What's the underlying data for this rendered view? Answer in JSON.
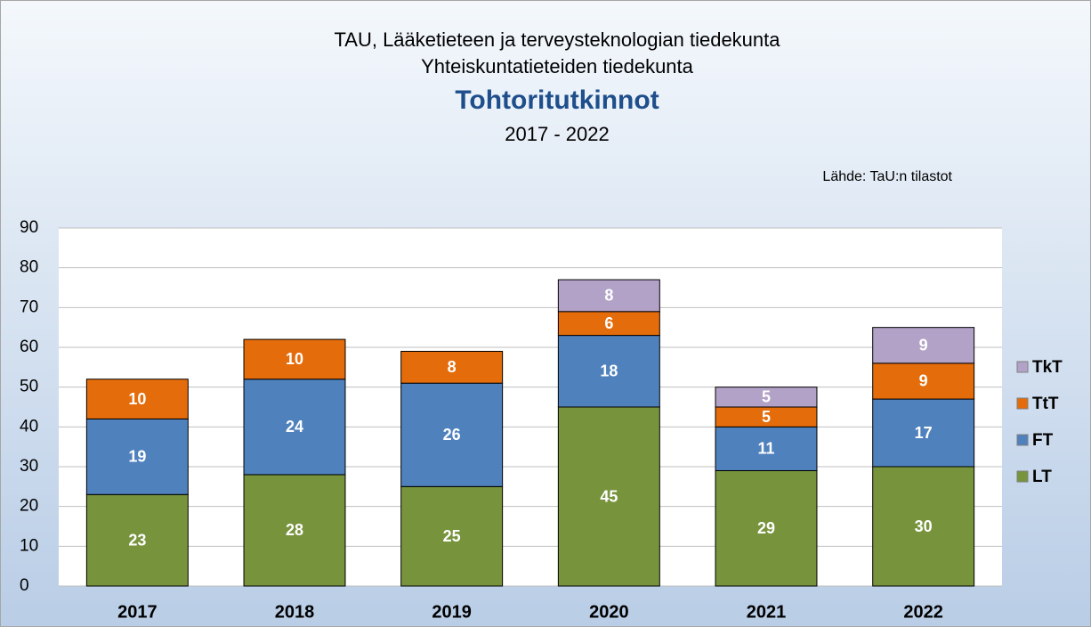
{
  "chart_data": {
    "type": "stacked_bar",
    "supertitle": [
      "TAU, Lääketieteen ja terveysteknologian tiedekunta",
      "Yhteiskuntatieteiden tiedekunta"
    ],
    "title": "Tohtoritutkinnot",
    "subtitle": "2017 - 2022",
    "annotation": "Lähde: TaU:n tilastot",
    "categories": [
      "2017",
      "2018",
      "2019",
      "2020",
      "2021",
      "2022"
    ],
    "series": [
      {
        "name": "LT",
        "color": "#77933c",
        "values": [
          23,
          28,
          25,
          45,
          29,
          30
        ]
      },
      {
        "name": "FT",
        "color": "#4f81bd",
        "values": [
          19,
          24,
          26,
          18,
          11,
          17
        ]
      },
      {
        "name": "TtT",
        "color": "#e46c0a",
        "values": [
          10,
          10,
          8,
          6,
          5,
          9
        ]
      },
      {
        "name": "TkT",
        "color": "#b3a2c7",
        "values": [
          null,
          null,
          null,
          8,
          5,
          9
        ]
      }
    ],
    "ylim": [
      0,
      90
    ],
    "yticks": [
      0,
      10,
      20,
      30,
      40,
      50,
      60,
      70,
      80,
      90
    ],
    "grid": true,
    "legend": "right"
  }
}
